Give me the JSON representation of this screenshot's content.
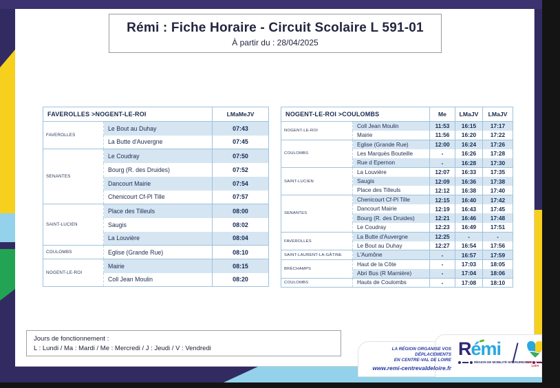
{
  "title": {
    "heading": "Rémi : Fiche Horaire - Circuit Scolaire L 591-01",
    "effective": "À partir du : 28/04/2025"
  },
  "tables": {
    "outbound": {
      "route": "FAVEROLLES >NOGENT-LE-ROI",
      "days": [
        "LMaMeJV"
      ],
      "groups": [
        {
          "name": "FAVEROLLES",
          "rows": [
            {
              "stop": "Le Bout au Duhay",
              "times": [
                "07:43"
              ]
            },
            {
              "stop": "La Butte d'Auvergne",
              "times": [
                "07:45"
              ]
            }
          ]
        },
        {
          "name": "SENANTES",
          "rows": [
            {
              "stop": "Le Coudray",
              "times": [
                "07:50"
              ]
            },
            {
              "stop": "Bourg (R. des Druides)",
              "times": [
                "07:52"
              ]
            },
            {
              "stop": "Dancourt Mairie",
              "times": [
                "07:54"
              ]
            },
            {
              "stop": "Chenicourt Cf-Pl Tille",
              "times": [
                "07:57"
              ]
            }
          ]
        },
        {
          "name": "SAINT-LUCIEN",
          "rows": [
            {
              "stop": "Place des Tilleuls",
              "times": [
                "08:00"
              ]
            },
            {
              "stop": "Saugis",
              "times": [
                "08:02"
              ]
            },
            {
              "stop": "La Louvière",
              "times": [
                "08:04"
              ]
            }
          ]
        },
        {
          "name": "COULOMBS",
          "rows": [
            {
              "stop": "Eglise (Grande Rue)",
              "times": [
                "08:10"
              ]
            }
          ]
        },
        {
          "name": "NOGENT-LE-ROI",
          "rows": [
            {
              "stop": "Mairie",
              "times": [
                "08:15"
              ]
            },
            {
              "stop": "Coll Jean Moulin",
              "times": [
                "08:20"
              ]
            }
          ]
        }
      ]
    },
    "inbound": {
      "route": "NOGENT-LE-ROI >COULOMBS",
      "days": [
        "Me",
        "LMaJV",
        "LMaJV"
      ],
      "groups": [
        {
          "name": "NOGENT-LE-ROI",
          "rows": [
            {
              "stop": "Coll Jean Moulin",
              "times": [
                "11:53",
                "16:15",
                "17:17"
              ]
            },
            {
              "stop": "Mairie",
              "times": [
                "11:56",
                "16:20",
                "17:22"
              ]
            }
          ]
        },
        {
          "name": "COULOMBS",
          "rows": [
            {
              "stop": "Eglise (Grande Rue)",
              "times": [
                "12:00",
                "16:24",
                "17:26"
              ]
            },
            {
              "stop": "Les Marquès Bouteille",
              "times": [
                "-",
                "16:26",
                "17:28"
              ]
            },
            {
              "stop": "Rue d Epernon",
              "times": [
                "-",
                "16:28",
                "17:30"
              ]
            }
          ]
        },
        {
          "name": "SAINT-LUCIEN",
          "rows": [
            {
              "stop": "La Louvière",
              "times": [
                "12:07",
                "16:33",
                "17:35"
              ]
            },
            {
              "stop": "Saugis",
              "times": [
                "12:09",
                "16:36",
                "17:38"
              ]
            },
            {
              "stop": "Place des Tilleuls",
              "times": [
                "12:12",
                "16:38",
                "17:40"
              ]
            }
          ]
        },
        {
          "name": "SENANTES",
          "rows": [
            {
              "stop": "Chenicourt Cf-Pl Tille",
              "times": [
                "12:15",
                "16:40",
                "17:42"
              ]
            },
            {
              "stop": "Dancourt Mairie",
              "times": [
                "12:19",
                "16:43",
                "17:45"
              ]
            },
            {
              "stop": "Bourg (R. des Druides)",
              "times": [
                "12:21",
                "16:46",
                "17:48"
              ]
            },
            {
              "stop": "Le Coudray",
              "times": [
                "12:23",
                "16:49",
                "17:51"
              ]
            }
          ]
        },
        {
          "name": "FAVEROLLES",
          "rows": [
            {
              "stop": "La Butte d'Auvergne",
              "times": [
                "12:25",
                "-",
                "-"
              ]
            },
            {
              "stop": "Le Bout au Duhay",
              "times": [
                "12:27",
                "16:54",
                "17:56"
              ]
            }
          ]
        },
        {
          "name": "SAINT-LAURENT-LA-GÂTINE",
          "rows": [
            {
              "stop": "L'Aumône",
              "times": [
                "-",
                "16:57",
                "17:59"
              ]
            }
          ]
        },
        {
          "name": "BRÉCHAMPS",
          "rows": [
            {
              "stop": "Haut de la Côte",
              "times": [
                "-",
                "17:03",
                "18:05"
              ]
            },
            {
              "stop": "Abri Bus (R Marnière)",
              "times": [
                "-",
                "17:04",
                "18:06"
              ]
            }
          ]
        },
        {
          "name": "COULOMBS",
          "rows": [
            {
              "stop": "Hauts de Coulombs",
              "times": [
                "-",
                "17:08",
                "18:10"
              ]
            }
          ]
        }
      ]
    }
  },
  "legend": {
    "title": "Jours de fonctionnement :",
    "days": "L : Lundi / Ma : Mardi / Me : Mercredi / J : Jeudi / V : Vendredi"
  },
  "footer_banner": {
    "line1": "LA RÉGION ORGANISE VOS DÉPLACEMENTS",
    "line2": "EN CENTRE-VAL DE LOIRE",
    "url": "www.remi-centrevaldeloire.fr",
    "logo_text": "Rémi",
    "tagline": "RÉGION DE MOBILITÉ INTERURBAINE",
    "region_label": "Centre-Val de Loire"
  },
  "colors": {
    "navy": "#312b62",
    "topbar_purple": "#3c3270",
    "yellow": "#f7d01e",
    "light_blue": "#93d2ea",
    "green": "#23a454",
    "table_border": "#9dc2dd",
    "row_shade": "#d6e5f2",
    "text_navy": "#1d2c50",
    "remi_blue": "#29a8e0",
    "remi_navy": "#2e2974",
    "banner_text_blue": "#2438a0"
  }
}
